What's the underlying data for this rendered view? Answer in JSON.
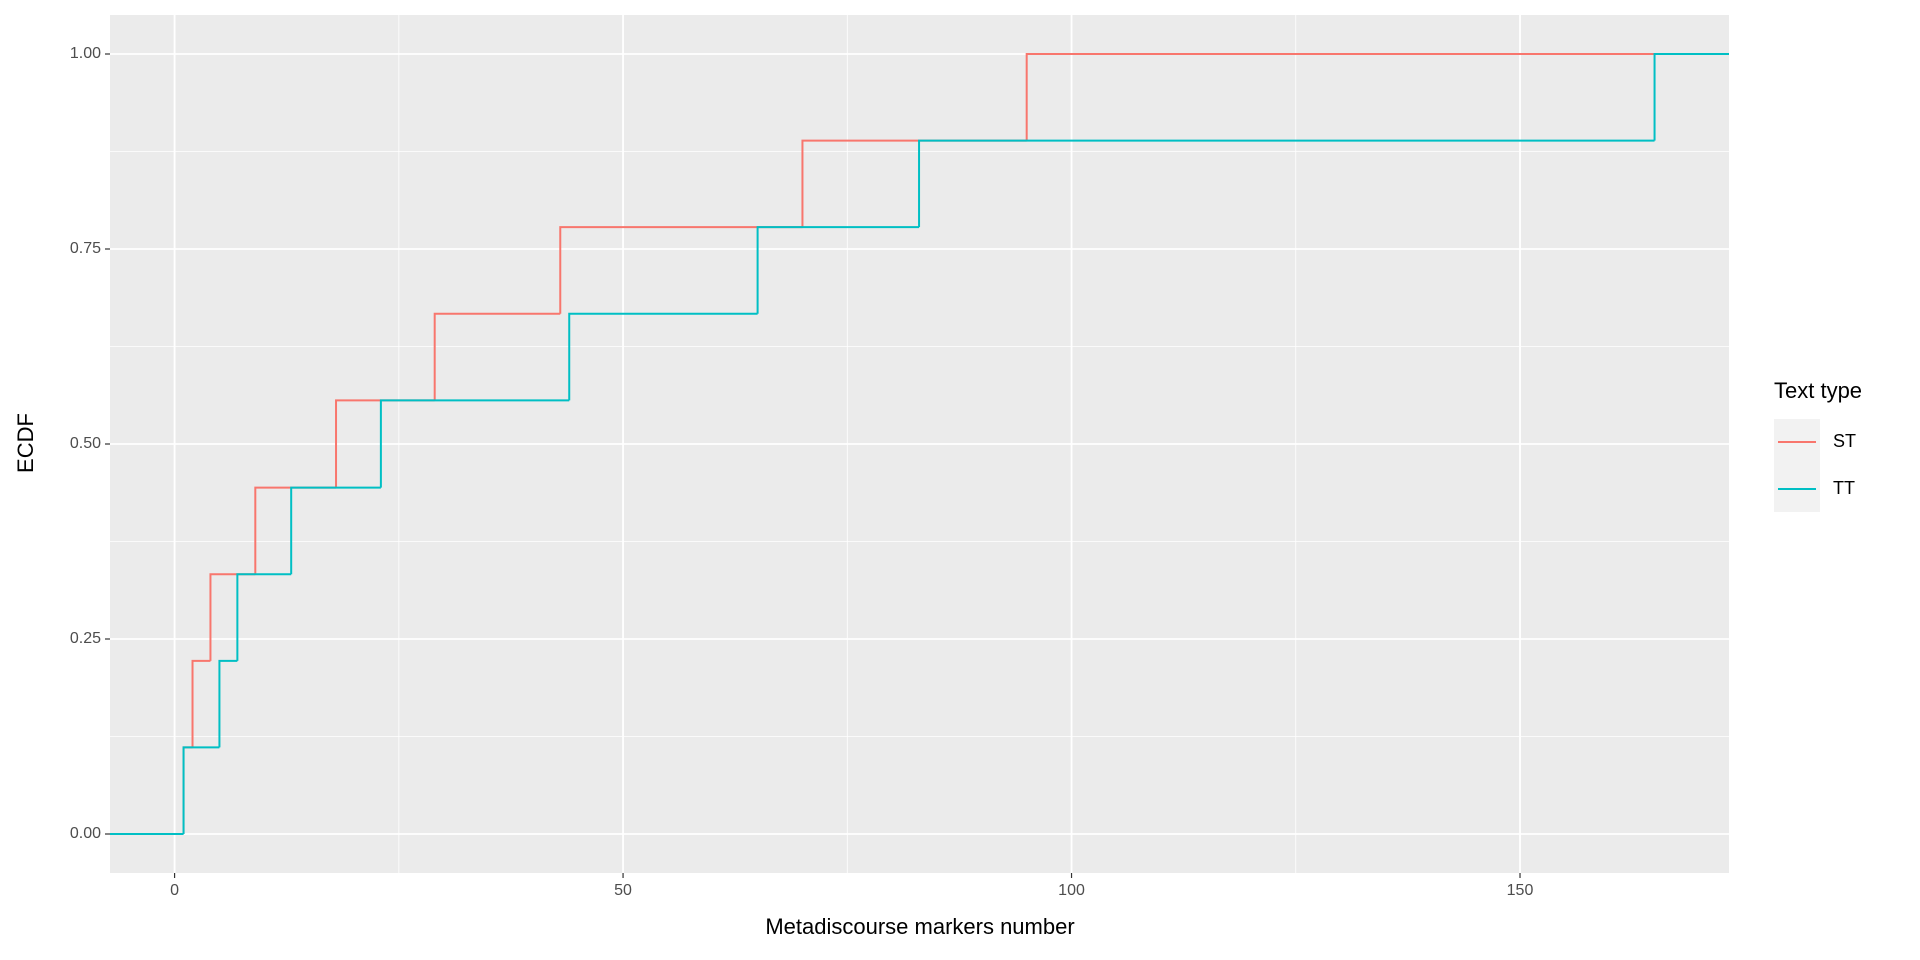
{
  "chart_data": {
    "type": "ecdf",
    "x_label": "Metadiscourse markers number",
    "y_label": "ECDF",
    "legend_title": "Text type",
    "series": [
      {
        "name": "ST",
        "color": "#F8766D",
        "x": [
          1,
          2,
          4,
          9,
          18,
          29,
          43,
          70,
          95
        ],
        "values": [
          0.111,
          0.222,
          0.333,
          0.444,
          0.556,
          0.667,
          0.778,
          0.889,
          1.0
        ]
      },
      {
        "name": "TT",
        "color": "#00BFC4",
        "x": [
          1,
          5,
          7,
          13,
          23,
          44,
          65,
          83,
          165
        ],
        "values": [
          0.111,
          0.222,
          0.333,
          0.444,
          0.556,
          0.667,
          0.778,
          0.889,
          1.0
        ]
      }
    ],
    "xlim": [
      -7.2,
      173.3
    ],
    "ylim": [
      -0.05,
      1.05
    ],
    "xticks": [
      0,
      50,
      100,
      150
    ],
    "yticks": [
      {
        "value": 0,
        "label": "0.00"
      },
      {
        "value": 0.25,
        "label": "0.25"
      },
      {
        "value": 0.5,
        "label": "0.50"
      },
      {
        "value": 0.75,
        "label": "0.75"
      },
      {
        "value": 1,
        "label": "1.00"
      }
    ],
    "grid": true
  }
}
